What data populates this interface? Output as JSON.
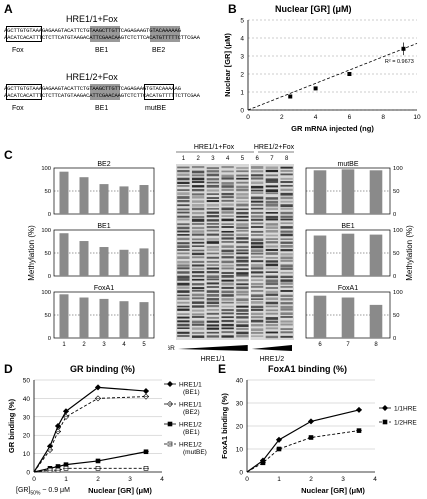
{
  "panels": {
    "A": {
      "letter": "A",
      "construct1": {
        "title": "HRE1/1+Fox",
        "seq_top": "AGCTTGTGTAAAGAGAAGTACATTCTGTAAGCTTGTTCAGAGAAGTGTACAAAAAG",
        "seq_bottom": "AACATCACATTTCTCTTCATGTAAGACATTCGAACAAGTCTCTTCACATGTTTTTCTTCGAA",
        "labels": [
          "Fox",
          "BE1",
          "BE2"
        ]
      },
      "construct2": {
        "title": "HRE1/2+Fox",
        "seq_top": "AGCTTGTGTAAAGAGAAGTACATTCTGTAAGCTTGTTCAGAGAAGTGTACAAAAAG",
        "seq_bottom": "AACATCACATTTCTCTTCATGTAAGACATTCGAACAAGTCTCTTCACATGTTTTTCTTCGAA",
        "labels": [
          "Fox",
          "BE1",
          "mutBE"
        ]
      }
    },
    "B": {
      "letter": "B",
      "title": "Nuclear [GR] (μM)",
      "r2": "R² = 0.9673"
    },
    "C": {
      "letter": "C",
      "gel_groups": [
        "HRE1/1+Fox",
        "HRE1/2+Fox"
      ],
      "lanes_left": [
        "1",
        "2",
        "3",
        "4",
        "5"
      ],
      "lanes_right": [
        "6",
        "7",
        "8"
      ],
      "gr_label": "GR",
      "bottom_labels": [
        "HRE1/1",
        "HRE1/2"
      ],
      "left_charts": [
        "BE2",
        "BE1",
        "FoxA1"
      ],
      "right_charts": [
        "mutBE",
        "BE1",
        "FoxA1"
      ],
      "y_axis_label": "Methylation (%)"
    },
    "D": {
      "letter": "D",
      "title": "GR binding (%)",
      "below_axis_note": "[GR]",
      "below_axis_note_sub": "50%",
      "below_axis_note_value": " ~ 0.9 μM"
    },
    "E": {
      "letter": "E",
      "title": "FoxA1 binding (%)"
    }
  },
  "chart_data": [
    {
      "panel": "B",
      "type": "scatter",
      "xlabel": "GR mRNA injected (ng)",
      "ylabel": "Nuclear [GR] (μM)",
      "xlim": [
        0,
        10
      ],
      "ylim": [
        0,
        5
      ],
      "xticks": [
        0,
        2,
        4,
        6,
        8,
        10
      ],
      "yticks": [
        0,
        1,
        2,
        3,
        4,
        5
      ],
      "x": [
        2.5,
        4,
        6,
        9.2
      ],
      "y": [
        0.75,
        1.2,
        2.0,
        3.4
      ],
      "trendline": true,
      "grid": true
    },
    {
      "panel": "C-left",
      "type": "bar",
      "categories": [
        "1",
        "2",
        "3",
        "4",
        "5"
      ],
      "ylim": [
        0,
        100
      ],
      "yticks": [
        0,
        50,
        100
      ],
      "series": [
        {
          "name": "BE2",
          "values": [
            92,
            80,
            65,
            60,
            63
          ]
        },
        {
          "name": "BE1",
          "values": [
            93,
            76,
            63,
            57,
            60
          ]
        },
        {
          "name": "FoxA1",
          "values": [
            95,
            88,
            85,
            80,
            78
          ]
        }
      ]
    },
    {
      "panel": "C-right",
      "type": "bar",
      "categories": [
        "6",
        "7",
        "8"
      ],
      "ylim": [
        0,
        100
      ],
      "yticks": [
        0,
        50,
        100
      ],
      "series": [
        {
          "name": "mutBE",
          "values": [
            95,
            97,
            95
          ]
        },
        {
          "name": "BE1",
          "values": [
            88,
            92,
            90
          ]
        },
        {
          "name": "FoxA1",
          "values": [
            92,
            88,
            72
          ]
        }
      ]
    },
    {
      "panel": "D",
      "type": "line",
      "xlabel": "Nuclear [GR] (μM)",
      "ylabel": "GR binding (%)",
      "xlim": [
        0,
        4
      ],
      "ylim": [
        0,
        50
      ],
      "xticks": [
        0,
        1,
        2,
        3,
        4
      ],
      "yticks": [
        0,
        10,
        20,
        30,
        40,
        50
      ],
      "x": [
        0,
        0.5,
        0.75,
        1,
        2,
        3.5
      ],
      "series": [
        {
          "name": "HRE1/1 (BE1)",
          "values": [
            0,
            14,
            25,
            33,
            46,
            44
          ]
        },
        {
          "name": "HRE1/1 (BE2)",
          "values": [
            0,
            12,
            22,
            30,
            40,
            41
          ]
        },
        {
          "name": "HRE1/2 (BE1)",
          "values": [
            0,
            2,
            3,
            4,
            6,
            11
          ]
        },
        {
          "name": "HRE1/2 (mutBE)",
          "values": [
            0,
            1,
            1,
            2,
            2,
            2
          ]
        }
      ]
    },
    {
      "panel": "E",
      "type": "line",
      "xlabel": "Nuclear [GR] (μM)",
      "ylabel": "FoxA1 binding (%)",
      "xlim": [
        0,
        4
      ],
      "ylim": [
        0,
        40
      ],
      "xticks": [
        0,
        1,
        2,
        3,
        4
      ],
      "yticks": [
        0,
        10,
        20,
        30,
        40
      ],
      "x": [
        0,
        0.5,
        1,
        2,
        3.5
      ],
      "series": [
        {
          "name": "1/1HRE",
          "values": [
            0,
            5,
            14,
            22,
            27
          ]
        },
        {
          "name": "1/2HRE",
          "values": [
            0,
            4,
            10,
            15,
            18
          ]
        }
      ]
    }
  ]
}
